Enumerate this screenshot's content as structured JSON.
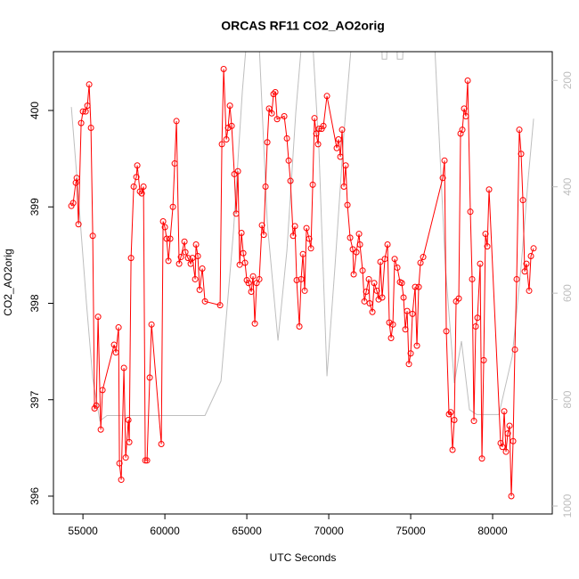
{
  "chart_data": {
    "type": "line",
    "title": "ORCAS RF11 CO2_AO2orig",
    "x_label": "UTC Seconds",
    "y_label": "CO2_AO2orig",
    "xlim": [
      53200,
      83640
    ],
    "xticks": [
      55000,
      60000,
      65000,
      70000,
      75000,
      80000
    ],
    "ylim": [
      395.815,
      400.61
    ],
    "yticks": [
      396,
      397,
      398,
      399,
      400
    ],
    "y2lim": [
      1015,
      146
    ],
    "y2ticks": [
      200,
      400,
      600,
      800,
      1000
    ],
    "series": [
      {
        "color": "#ff0000",
        "marker": "open-circle",
        "x": [
          54293,
          54402,
          54565,
          54620,
          54728,
          54891,
          55000,
          55163,
          55272,
          55380,
          55489,
          55598,
          55707,
          55815,
          55924,
          56087,
          56196,
          56902,
          57011,
          57174,
          57228,
          57337,
          57500,
          57609,
          57772,
          57826,
          57935,
          58098,
          58261,
          58315,
          58478,
          58587,
          58696,
          58804,
          58913,
          59076,
          59185,
          59783,
          59891,
          60000,
          60109,
          60217,
          60326,
          60489,
          60598,
          60707,
          60870,
          60978,
          61196,
          61250,
          61413,
          61576,
          61685,
          61848,
          61902,
          62011,
          62120,
          62283,
          62446,
          63370,
          63478,
          63587,
          63750,
          63859,
          63967,
          64076,
          64239,
          64348,
          64457,
          64565,
          64674,
          64783,
          64891,
          65000,
          65109,
          65272,
          65380,
          65489,
          65598,
          65761,
          65924,
          66033,
          66141,
          66250,
          66359,
          66522,
          66630,
          66739,
          66848,
          67283,
          67446,
          67554,
          67663,
          67826,
          67935,
          68043,
          68207,
          68315,
          68424,
          68533,
          68641,
          68804,
          68913,
          69022,
          69130,
          69239,
          69348,
          69402,
          69565,
          69674,
          69891,
          70489,
          70598,
          70707,
          70815,
          70924,
          71033,
          71141,
          71304,
          71467,
          71522,
          71685,
          71848,
          71902,
          72065,
          72174,
          72283,
          72446,
          72500,
          72663,
          72772,
          72935,
          73043,
          73152,
          73261,
          73424,
          73587,
          73696,
          73804,
          73913,
          74022,
          74185,
          74348,
          74457,
          74565,
          74674,
          74783,
          74891,
          75000,
          75109,
          75272,
          75380,
          75489,
          75598,
          75761,
          76957,
          77065,
          77174,
          77337,
          77446,
          77554,
          77663,
          77772,
          77935,
          78043,
          78152,
          78261,
          78370,
          78478,
          78641,
          78750,
          78859,
          78967,
          79076,
          79239,
          79348,
          79457,
          79565,
          79674,
          79783,
          80489,
          80598,
          80707,
          80815,
          80924,
          81033,
          81141,
          81250,
          81359,
          81467,
          81630,
          81739,
          81848,
          81957,
          82065,
          82228,
          82337,
          82500
        ],
        "values": [
          399.01,
          399.04,
          399.25,
          399.3,
          398.82,
          399.87,
          399.99,
          399.99,
          400.05,
          400.27,
          399.82,
          398.7,
          396.91,
          396.94,
          397.86,
          396.69,
          397.1,
          397.57,
          397.49,
          397.75,
          396.34,
          396.17,
          397.33,
          396.4,
          396.79,
          396.56,
          398.47,
          399.21,
          399.31,
          399.43,
          399.16,
          399.14,
          399.21,
          396.37,
          396.37,
          397.23,
          397.78,
          396.54,
          398.85,
          398.79,
          398.67,
          398.44,
          398.67,
          399.0,
          399.45,
          399.89,
          398.41,
          398.48,
          398.64,
          398.53,
          398.47,
          398.41,
          398.47,
          398.25,
          398.61,
          398.49,
          398.14,
          398.36,
          398.02,
          397.98,
          399.65,
          400.43,
          399.7,
          399.82,
          400.05,
          399.84,
          399.34,
          398.93,
          399.37,
          398.4,
          398.73,
          398.52,
          398.42,
          398.24,
          398.21,
          398.12,
          398.28,
          397.79,
          398.21,
          398.25,
          398.81,
          398.71,
          399.21,
          399.67,
          400.02,
          399.97,
          400.17,
          400.19,
          399.91,
          399.94,
          399.71,
          399.48,
          399.27,
          398.7,
          398.8,
          398.24,
          397.76,
          398.25,
          398.51,
          398.13,
          398.78,
          398.67,
          398.57,
          399.23,
          399.92,
          399.76,
          399.65,
          399.81,
          399.81,
          399.84,
          400.15,
          399.61,
          399.7,
          399.52,
          399.8,
          399.21,
          399.43,
          399.02,
          398.68,
          398.56,
          398.3,
          398.53,
          398.72,
          398.61,
          398.34,
          398.02,
          398.12,
          398.25,
          398.0,
          397.91,
          398.21,
          398.13,
          398.04,
          398.43,
          398.06,
          398.46,
          398.61,
          397.8,
          397.64,
          397.78,
          398.46,
          398.37,
          398.22,
          398.21,
          398.06,
          397.73,
          397.92,
          397.37,
          397.48,
          397.89,
          398.17,
          397.56,
          398.17,
          398.42,
          398.48,
          399.3,
          399.48,
          397.71,
          396.85,
          396.87,
          396.48,
          396.79,
          398.02,
          398.05,
          399.76,
          399.8,
          400.02,
          399.94,
          400.31,
          398.95,
          398.25,
          396.78,
          397.76,
          397.85,
          398.41,
          396.39,
          397.41,
          398.72,
          398.59,
          399.18,
          396.55,
          396.51,
          396.88,
          396.46,
          396.65,
          396.73,
          396.0,
          396.57,
          397.52,
          398.25,
          399.8,
          399.55,
          399.07,
          398.33,
          398.41,
          398.13,
          398.49,
          398.57
        ]
      },
      {
        "color": "#bebebe",
        "axis": "y2",
        "x": [
          54293,
          54728,
          55217,
          55598,
          56033,
          56467,
          62446,
          63424,
          64185,
          64728,
          65054,
          65707,
          66250,
          66902,
          67446,
          67989,
          68424,
          68967,
          69402,
          69891,
          70380,
          70924,
          71467,
          73207,
          73261,
          73533,
          73587,
          74130,
          74185,
          74511,
          74565,
          76413,
          77120,
          77663,
          78098,
          78587,
          79022,
          80380,
          81196,
          81739,
          82174,
          82500
        ],
        "values": [
          250,
          420,
          620,
          760,
          840,
          830,
          830,
          765,
          484,
          220,
          100,
          100,
          468,
          689,
          520,
          260,
          100,
          100,
          330,
          756,
          550,
          300,
          100,
          100,
          160,
          160,
          100,
          100,
          160,
          160,
          100,
          100,
          551,
          769,
          690,
          819,
          828,
          828,
          719,
          550,
          384,
          272
        ]
      }
    ]
  }
}
